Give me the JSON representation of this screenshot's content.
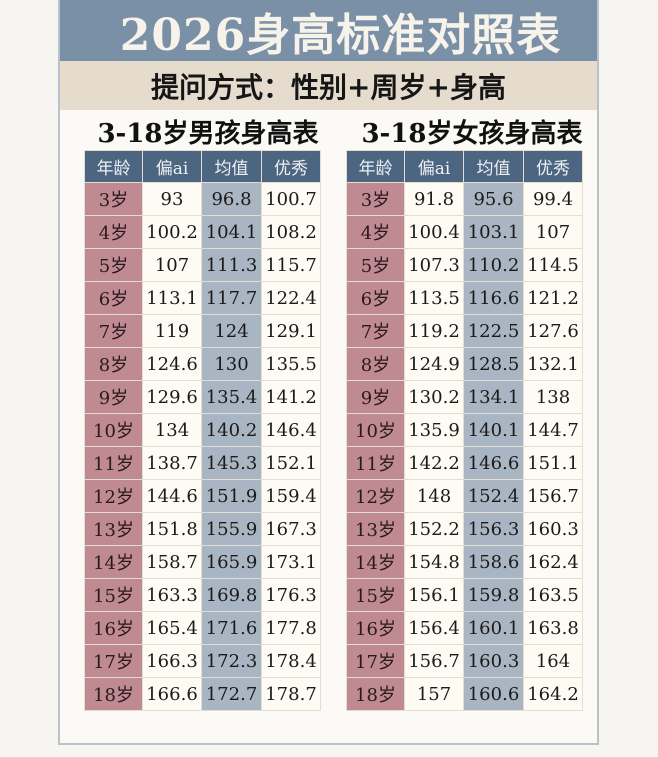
{
  "header": {
    "title": "2026身高标准对照表",
    "subtitle": "提问方式：性别+周岁+身高"
  },
  "colors": {
    "banner": "#7990a6",
    "strip": "#e6dccd",
    "table_header": "#4c6681",
    "age_column": "#c08a93",
    "mean_column": "#a9b5c3",
    "cell": "#fdfbf4"
  },
  "columns": [
    "年龄",
    "偏ai",
    "均值",
    "优秀"
  ],
  "boys": {
    "title": "3-18岁男孩身高表",
    "rows": [
      [
        "3岁",
        "93",
        "96.8",
        "100.7"
      ],
      [
        "4岁",
        "100.2",
        "104.1",
        "108.2"
      ],
      [
        "5岁",
        "107",
        "111.3",
        "115.7"
      ],
      [
        "6岁",
        "113.1",
        "117.7",
        "122.4"
      ],
      [
        "7岁",
        "119",
        "124",
        "129.1"
      ],
      [
        "8岁",
        "124.6",
        "130",
        "135.5"
      ],
      [
        "9岁",
        "129.6",
        "135.4",
        "141.2"
      ],
      [
        "10岁",
        "134",
        "140.2",
        "146.4"
      ],
      [
        "11岁",
        "138.7",
        "145.3",
        "152.1"
      ],
      [
        "12岁",
        "144.6",
        "151.9",
        "159.4"
      ],
      [
        "13岁",
        "151.8",
        "155.9",
        "167.3"
      ],
      [
        "14岁",
        "158.7",
        "165.9",
        "173.1"
      ],
      [
        "15岁",
        "163.3",
        "169.8",
        "176.3"
      ],
      [
        "16岁",
        "165.4",
        "171.6",
        "177.8"
      ],
      [
        "17岁",
        "166.3",
        "172.3",
        "178.4"
      ],
      [
        "18岁",
        "166.6",
        "172.7",
        "178.7"
      ]
    ]
  },
  "girls": {
    "title": "3-18岁女孩身高表",
    "rows": [
      [
        "3岁",
        "91.8",
        "95.6",
        "99.4"
      ],
      [
        "4岁",
        "100.4",
        "103.1",
        "107"
      ],
      [
        "5岁",
        "107.3",
        "110.2",
        "114.5"
      ],
      [
        "6岁",
        "113.5",
        "116.6",
        "121.2"
      ],
      [
        "7岁",
        "119.2",
        "122.5",
        "127.6"
      ],
      [
        "8岁",
        "124.9",
        "128.5",
        "132.1"
      ],
      [
        "9岁",
        "130.2",
        "134.1",
        "138"
      ],
      [
        "10岁",
        "135.9",
        "140.1",
        "144.7"
      ],
      [
        "11岁",
        "142.2",
        "146.6",
        "151.1"
      ],
      [
        "12岁",
        "148",
        "152.4",
        "156.7"
      ],
      [
        "13岁",
        "152.2",
        "156.3",
        "160.3"
      ],
      [
        "14岁",
        "154.8",
        "158.6",
        "162.4"
      ],
      [
        "15岁",
        "156.1",
        "159.8",
        "163.5"
      ],
      [
        "16岁",
        "156.4",
        "160.1",
        "163.8"
      ],
      [
        "17岁",
        "156.7",
        "160.3",
        "164"
      ],
      [
        "18岁",
        "157",
        "160.6",
        "164.2"
      ]
    ]
  }
}
